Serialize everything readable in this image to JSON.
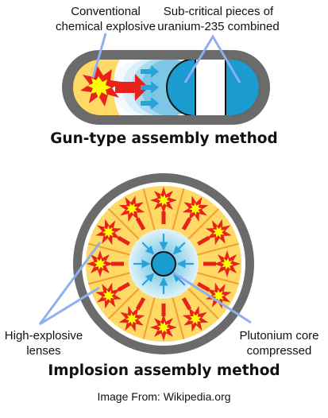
{
  "gun": {
    "label_explosive": [
      "Conventional",
      "chemical explosive"
    ],
    "label_pieces": [
      "Sub-critical pieces of",
      "uranium-235 combined"
    ],
    "title": "Gun-type assembly method"
  },
  "implosion": {
    "label_lenses": [
      "High-explosive",
      "lenses"
    ],
    "label_core": [
      "Plutonium core",
      "compressed"
    ],
    "title": "Implosion assembly method"
  },
  "credit": "Image From: Wikipedia.org",
  "colors": {
    "casing": "#6b6b6b",
    "explosive": "#ffd966",
    "blast_red": "#e8211b",
    "blast_yellow": "#ffff00",
    "uranium": "#1a9cd0",
    "shock_light": "#bfe6f3",
    "annotation": "#8fb0f0",
    "arrow_blue": "#2aa3d6"
  }
}
